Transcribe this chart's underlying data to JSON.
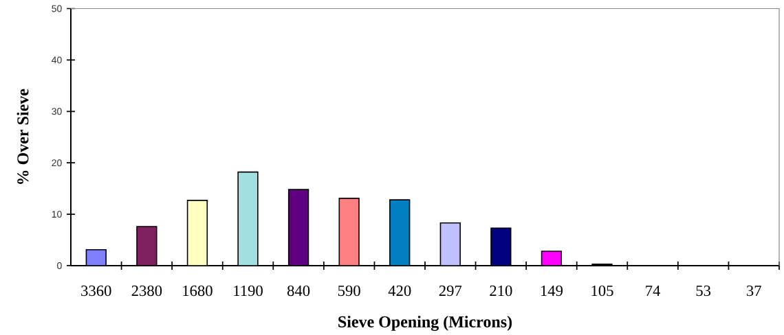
{
  "chart_data": {
    "type": "bar",
    "xlabel": "Sieve Opening (Microns)",
    "ylabel": "% Over Sieve",
    "categories": [
      "3360",
      "2380",
      "1680",
      "1190",
      "840",
      "590",
      "420",
      "297",
      "210",
      "149",
      "105",
      "74",
      "53",
      "37"
    ],
    "values": [
      3.1,
      7.6,
      12.7,
      18.2,
      14.8,
      13.1,
      12.8,
      8.3,
      7.3,
      2.8,
      0.3,
      0,
      0,
      0
    ],
    "colors": [
      "#8080ff",
      "#802060",
      "#ffffc0",
      "#a0e0e0",
      "#600080",
      "#ff8080",
      "#0080c0",
      "#c0c0ff",
      "#000080",
      "#ff00ff",
      "#000000",
      "#00ffff",
      "#800080",
      "#800000"
    ],
    "ylim": [
      0,
      50
    ],
    "yticks": [
      0,
      10,
      20,
      30,
      40,
      50
    ]
  }
}
